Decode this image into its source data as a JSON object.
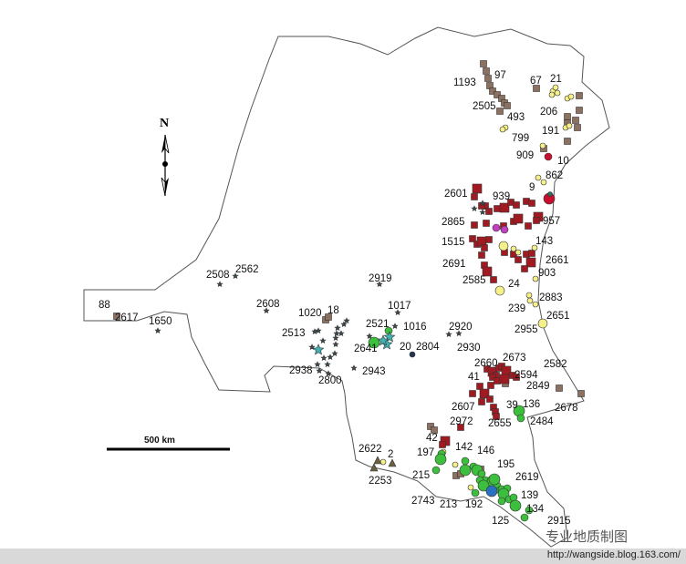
{
  "map": {
    "north_label": "N",
    "scale_label": "500 km",
    "labels": [
      "1193",
      "97",
      "67",
      "21",
      "2505",
      "493",
      "206",
      "799",
      "191",
      "909",
      "10",
      "862",
      "9",
      "2601",
      "939",
      "2865",
      "957",
      "1515",
      "143",
      "2691",
      "2661",
      "2585",
      "24",
      "903",
      "2883",
      "239",
      "2651",
      "2955",
      "2508",
      "2562",
      "2919",
      "2608",
      "1017",
      "1020",
      "18",
      "2513",
      "2521",
      "1016",
      "2920",
      "2641",
      "20",
      "2804",
      "2930",
      "2938",
      "2943",
      "2800",
      "88",
      "2617",
      "1650",
      "2660",
      "2673",
      "2582",
      "41",
      "2594",
      "2849",
      "2607",
      "2678",
      "39",
      "136",
      "2655",
      "2484",
      "2972",
      "42",
      "2622",
      "2",
      "197",
      "142",
      "146",
      "2253",
      "215",
      "195",
      "2619",
      "139",
      "2743",
      "213",
      "192",
      "134",
      "125",
      "2915"
    ],
    "symbol_colors": {
      "brown_square": "#8c7060",
      "red_square": "#a01a22",
      "yellow_circle": "#f5f08a",
      "green_circle": "#3cbf3c",
      "red_circle": "#c8102e",
      "magenta_circle": "#c040c0",
      "blue_circle": "#2a70c0",
      "star": "#3a4a50",
      "teal_star": "#40b0b0"
    }
  },
  "watermark": "专业地质制图",
  "footer_url": "http://wangside.blog.163.com/"
}
